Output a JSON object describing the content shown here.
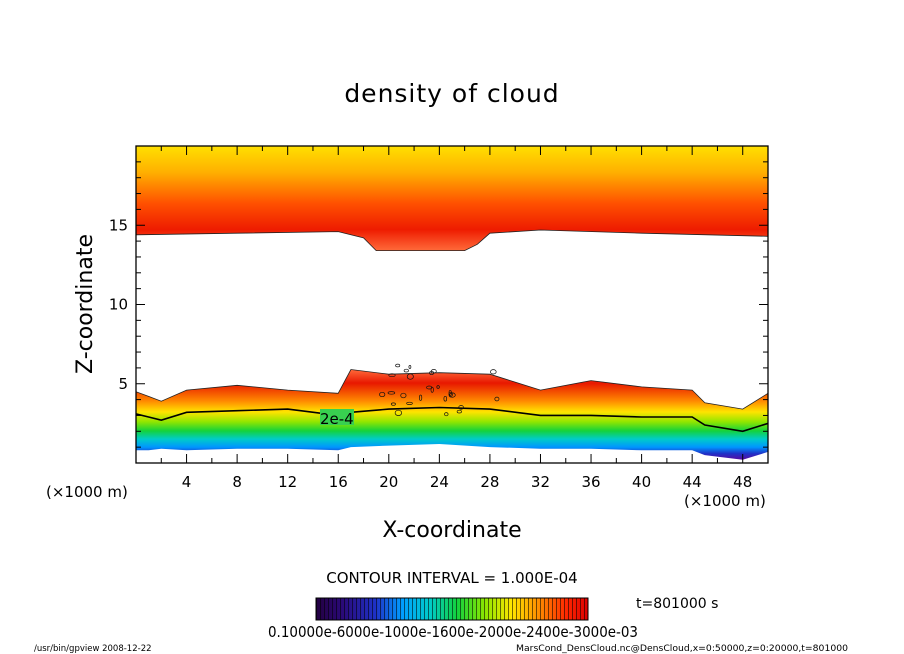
{
  "chart_data": {
    "type": "heatmap",
    "title": "density of cloud",
    "xlabel": "X-coordinate",
    "ylabel": "Z-coordinate",
    "x_unit": "(×1000 m)",
    "y_unit": "(×1000 m)",
    "xlim": [
      0,
      50
    ],
    "ylim": [
      0,
      20
    ],
    "x_ticks": [
      "4",
      "8",
      "12",
      "16",
      "20",
      "24",
      "28",
      "32",
      "36",
      "40",
      "44",
      "48"
    ],
    "y_ticks": [
      "5",
      "10",
      "15"
    ],
    "contour_label": "2e-4",
    "contour_interval_text": "CONTOUR INTERVAL = 1.000E-04",
    "time_label": "t=801000  s",
    "colorbar_labels": "0.10000e-6000e-1000e-1600e-2000e-2400e-3000e-03",
    "colorbar_colors": [
      "#230040",
      "#2a0a7a",
      "#1e32c8",
      "#00a0ff",
      "#00ccc8",
      "#14d23c",
      "#8ce600",
      "#ffe600",
      "#ff8c00",
      "#ff2800",
      "#dc0000"
    ],
    "upper_layer": {
      "x": [
        0,
        8,
        16,
        18,
        19,
        26,
        27,
        28,
        32,
        40,
        50
      ],
      "lower_edge": [
        14.4,
        14.5,
        14.6,
        14.2,
        13.4,
        13.4,
        13.8,
        14.5,
        14.7,
        14.5,
        14.3
      ],
      "top": 20
    },
    "lower_layer": {
      "x": [
        0,
        1,
        2,
        4,
        8,
        12,
        16,
        17,
        20,
        24,
        28,
        32,
        36,
        40,
        44,
        45,
        48,
        50
      ],
      "top": [
        4.5,
        4.2,
        3.9,
        4.6,
        4.9,
        4.6,
        4.4,
        5.9,
        5.6,
        5.7,
        5.6,
        4.6,
        5.2,
        4.8,
        4.6,
        3.8,
        3.4,
        4.4
      ],
      "contour_2e4": [
        3.1,
        2.9,
        2.7,
        3.2,
        3.3,
        3.4,
        3.0,
        3.2,
        3.4,
        3.5,
        3.4,
        3.0,
        3.0,
        2.9,
        2.9,
        2.4,
        2.0,
        2.5
      ],
      "bottom": [
        0.8,
        0.8,
        0.9,
        0.8,
        0.9,
        0.9,
        0.8,
        1.0,
        1.1,
        1.2,
        1.0,
        0.9,
        0.9,
        0.8,
        0.8,
        0.5,
        0.2,
        0.7
      ]
    }
  },
  "footer": {
    "left": "/usr/bin/gpview  2008-12-22",
    "right": "MarsCond_DensCloud.nc@DensCloud,x=0:50000,z=0:20000,t=801000"
  }
}
